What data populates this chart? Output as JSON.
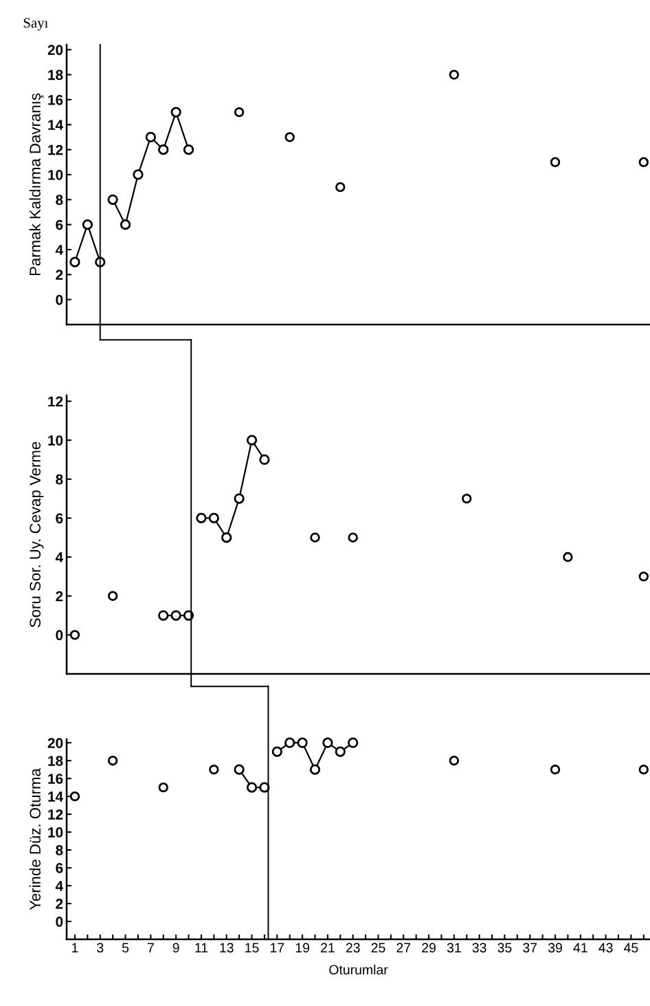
{
  "chart_data": [
    {
      "type": "line",
      "ylabel": "Parmak Kaldırma Davranış",
      "annotations": [
        "Sayı"
      ],
      "marker": "circle",
      "grid": false,
      "legend": false,
      "tick_labels": "y",
      "xlim": [
        0.35,
        46.5
      ],
      "ylim": [
        -2,
        20.4
      ],
      "yticks": [
        0,
        2,
        4,
        6,
        8,
        10,
        12,
        14,
        16,
        18,
        20
      ],
      "series": [
        {
          "color": "#000000",
          "x": [
            1,
            2,
            3
          ],
          "values": [
            3,
            6,
            3
          ]
        },
        {
          "color": "#000000",
          "x": [
            4,
            5,
            6,
            7,
            8,
            9,
            10
          ],
          "values": [
            8,
            6,
            10,
            13,
            12,
            15,
            12
          ]
        },
        {
          "type": "scatter",
          "color": "#000000",
          "x": [
            14,
            18,
            22,
            31,
            39,
            46
          ],
          "values": [
            15,
            13,
            9,
            18,
            11,
            11
          ]
        }
      ],
      "ref_lines": [
        {
          "axis": "x",
          "value": 3,
          "color": "#000000",
          "line_style": "solid"
        }
      ]
    },
    {
      "type": "line",
      "ylabel": "Soru Sor. Uy. Cevap Verme",
      "marker": "circle",
      "grid": false,
      "legend": false,
      "tick_labels": "y",
      "xlim": [
        0.35,
        46.5
      ],
      "ylim": [
        -2,
        12.3
      ],
      "yticks": [
        0,
        2,
        4,
        6,
        8,
        10,
        12
      ],
      "series": [
        {
          "type": "scatter",
          "color": "#000000",
          "x": [
            1,
            4
          ],
          "values": [
            0,
            2
          ]
        },
        {
          "color": "#000000",
          "x": [
            8,
            9,
            10
          ],
          "values": [
            1,
            1,
            1
          ]
        },
        {
          "color": "#000000",
          "x": [
            11,
            12,
            13,
            14,
            15,
            16
          ],
          "values": [
            6,
            6,
            5,
            7,
            10,
            9
          ]
        },
        {
          "type": "scatter",
          "color": "#000000",
          "x": [
            20,
            23,
            32,
            40,
            46
          ],
          "values": [
            5,
            5,
            7,
            4,
            3
          ]
        }
      ],
      "ref_lines": [
        {
          "axis": "x",
          "value": 10.2,
          "color": "#000000",
          "line_style": "solid"
        }
      ]
    },
    {
      "type": "line",
      "ylabel": "Yerinde Düz. Oturma",
      "xlabel": "Oturumlar",
      "marker": "circle",
      "grid": false,
      "legend": false,
      "xlim": [
        0.35,
        46.5
      ],
      "ylim": [
        -2,
        20.4
      ],
      "yticks": [
        0,
        2,
        4,
        6,
        8,
        10,
        12,
        14,
        16,
        18,
        20
      ],
      "xticks": [
        1,
        {
          "value": 2,
          "label": null
        },
        3,
        {
          "value": 4,
          "label": null
        },
        5,
        {
          "value": 6,
          "label": null
        },
        7,
        {
          "value": 8,
          "label": null
        },
        9,
        {
          "value": 10,
          "label": null
        },
        11,
        {
          "value": 12,
          "label": null
        },
        13,
        {
          "value": 14,
          "label": null
        },
        15,
        {
          "value": 16,
          "label": null
        },
        17,
        {
          "value": 18,
          "label": null
        },
        19,
        {
          "value": 20,
          "label": null
        },
        21,
        {
          "value": 22,
          "label": null
        },
        23,
        {
          "value": 24,
          "label": null
        },
        25,
        {
          "value": 26,
          "label": null
        },
        27,
        {
          "value": 28,
          "label": null
        },
        29,
        {
          "value": 30,
          "label": null
        },
        31,
        {
          "value": 32,
          "label": null
        },
        33,
        {
          "value": 34,
          "label": null
        },
        35,
        {
          "value": 36,
          "label": null
        },
        37,
        {
          "value": 38,
          "label": null
        },
        39,
        {
          "value": 40,
          "label": null
        },
        41,
        {
          "value": 42,
          "label": null
        },
        43,
        {
          "value": 44,
          "label": null
        },
        45,
        {
          "value": 46,
          "label": null
        }
      ],
      "series": [
        {
          "type": "scatter",
          "color": "#000000",
          "x": [
            1,
            4,
            8,
            12
          ],
          "values": [
            14,
            18,
            15,
            17
          ]
        },
        {
          "color": "#000000",
          "x": [
            14,
            15,
            16
          ],
          "values": [
            17,
            15,
            15
          ]
        },
        {
          "color": "#000000",
          "x": [
            17,
            18,
            19,
            20,
            21,
            22,
            23
          ],
          "values": [
            19,
            20,
            20,
            17,
            20,
            19,
            20
          ]
        },
        {
          "type": "scatter",
          "color": "#000000",
          "x": [
            31,
            39,
            46
          ],
          "values": [
            18,
            17,
            17
          ]
        }
      ],
      "ref_lines": [
        {
          "axis": "x",
          "value": 16.3,
          "color": "#000000",
          "line_style": "solid"
        }
      ]
    }
  ]
}
